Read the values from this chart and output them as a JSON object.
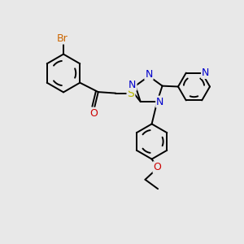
{
  "bg_color": "#e8e8e8",
  "bond_color": "#000000",
  "atom_colors": {
    "Br": "#cc6600",
    "O": "#cc0000",
    "S": "#b8b800",
    "N": "#0000cc",
    "C": "#000000"
  },
  "font_size": 9,
  "bond_width": 1.4,
  "fig_w": 3.0,
  "fig_h": 3.0,
  "dpi": 100
}
